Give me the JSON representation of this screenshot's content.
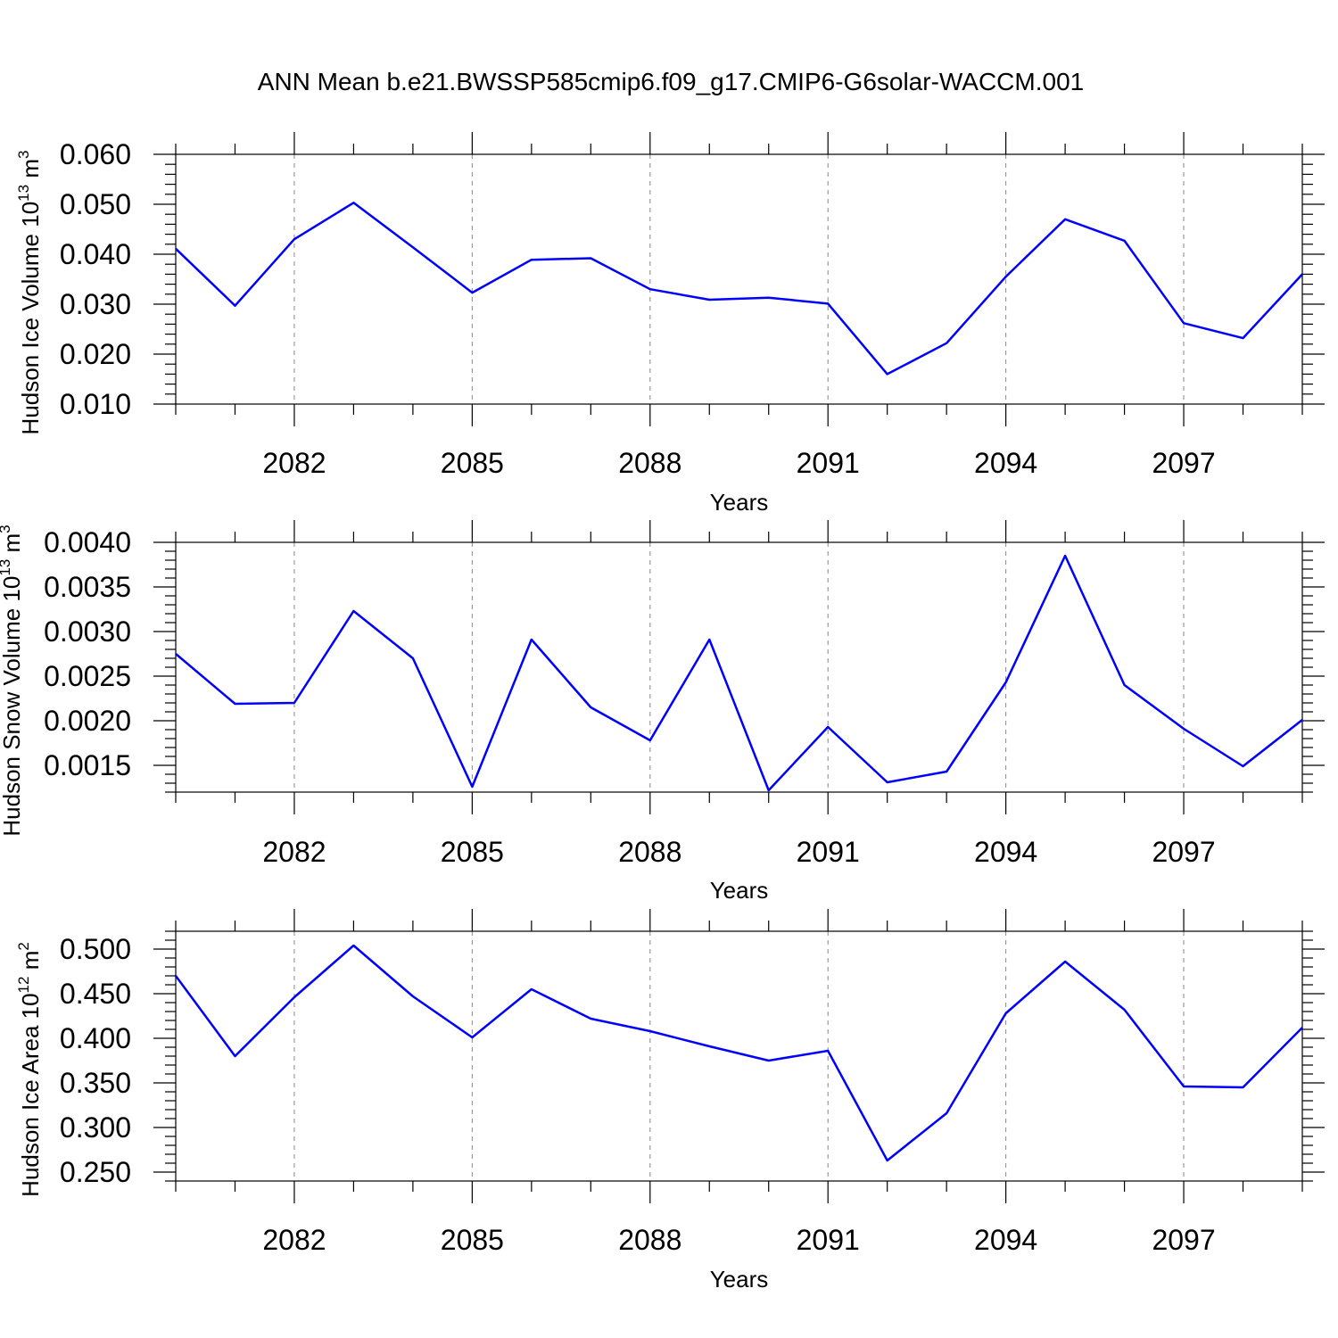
{
  "title": "ANN Mean b.e21.BWSSP585cmip6.f09_g17.CMIP6-G6solar-WACCM.001",
  "chart_data": [
    {
      "type": "line",
      "xlabel": "Years",
      "ylabel": "Hudson Ice Volume 10",
      "ylabel_exp": "13",
      "ylabel_unit": " m",
      "ylabel_unit_exp": "3",
      "xlim": [
        2080,
        2099
      ],
      "ylim": [
        0.01,
        0.06
      ],
      "xticks": [
        2082,
        2085,
        2088,
        2091,
        2094,
        2097
      ],
      "xtick_labels": [
        "2082",
        "2085",
        "2088",
        "2091",
        "2094",
        "2097"
      ],
      "yticks": [
        0.01,
        0.02,
        0.03,
        0.04,
        0.05,
        0.06
      ],
      "ytick_labels": [
        "0.010",
        "0.020",
        "0.030",
        "0.040",
        "0.050",
        "0.060"
      ],
      "yminor_step": 0.002,
      "grid": "x-dashed",
      "color": "#0000ff",
      "x": [
        2080,
        2081,
        2082,
        2083,
        2084,
        2085,
        2086,
        2087,
        2088,
        2089,
        2090,
        2091,
        2092,
        2093,
        2094,
        2095,
        2096,
        2097,
        2098,
        2099
      ],
      "values": [
        0.0411,
        0.0297,
        0.043,
        0.0503,
        0.0414,
        0.0323,
        0.0389,
        0.0392,
        0.033,
        0.0309,
        0.0313,
        0.0301,
        0.016,
        0.0222,
        0.0355,
        0.047,
        0.0427,
        0.0262,
        0.0232,
        0.036
      ]
    },
    {
      "type": "line",
      "xlabel": "Years",
      "ylabel": "Hudson Snow Volume 10",
      "ylabel_exp": "13",
      "ylabel_unit": " m",
      "ylabel_unit_exp": "3",
      "xlim": [
        2080,
        2099
      ],
      "ylim": [
        0.0012,
        0.004
      ],
      "xticks": [
        2082,
        2085,
        2088,
        2091,
        2094,
        2097
      ],
      "xtick_labels": [
        "2082",
        "2085",
        "2088",
        "2091",
        "2094",
        "2097"
      ],
      "yticks": [
        0.0015,
        0.002,
        0.0025,
        0.003,
        0.0035,
        0.004
      ],
      "ytick_labels": [
        "0.0015",
        "0.0020",
        "0.0025",
        "0.0030",
        "0.0035",
        "0.0040"
      ],
      "yminor_step": 0.0001,
      "grid": "x-dashed",
      "color": "#0000ff",
      "x": [
        2080,
        2081,
        2082,
        2083,
        2084,
        2085,
        2086,
        2087,
        2088,
        2089,
        2090,
        2091,
        2092,
        2093,
        2094,
        2095,
        2096,
        2097,
        2098,
        2099
      ],
      "values": [
        0.00275,
        0.00219,
        0.0022,
        0.00323,
        0.0027,
        0.00126,
        0.00291,
        0.00215,
        0.00178,
        0.00291,
        0.00122,
        0.00193,
        0.00131,
        0.00143,
        0.00243,
        0.00385,
        0.0024,
        0.00191,
        0.00149,
        0.00201
      ]
    },
    {
      "type": "line",
      "xlabel": "Years",
      "ylabel": "Hudson Ice Area 10",
      "ylabel_exp": "12",
      "ylabel_unit": " m",
      "ylabel_unit_exp": "2",
      "xlim": [
        2080,
        2099
      ],
      "ylim": [
        0.24,
        0.52
      ],
      "xticks": [
        2082,
        2085,
        2088,
        2091,
        2094,
        2097
      ],
      "xtick_labels": [
        "2082",
        "2085",
        "2088",
        "2091",
        "2094",
        "2097"
      ],
      "yticks": [
        0.25,
        0.3,
        0.35,
        0.4,
        0.45,
        0.5
      ],
      "ytick_labels": [
        "0.250",
        "0.300",
        "0.350",
        "0.400",
        "0.450",
        "0.500"
      ],
      "yminor_step": 0.01,
      "grid": "x-dashed",
      "color": "#0000ff",
      "x": [
        2080,
        2081,
        2082,
        2083,
        2084,
        2085,
        2086,
        2087,
        2088,
        2089,
        2090,
        2091,
        2092,
        2093,
        2094,
        2095,
        2096,
        2097,
        2098,
        2099
      ],
      "values": [
        0.47,
        0.38,
        0.446,
        0.504,
        0.447,
        0.401,
        0.455,
        0.422,
        0.408,
        0.391,
        0.375,
        0.386,
        0.263,
        0.316,
        0.428,
        0.486,
        0.432,
        0.346,
        0.345,
        0.412
      ]
    }
  ]
}
